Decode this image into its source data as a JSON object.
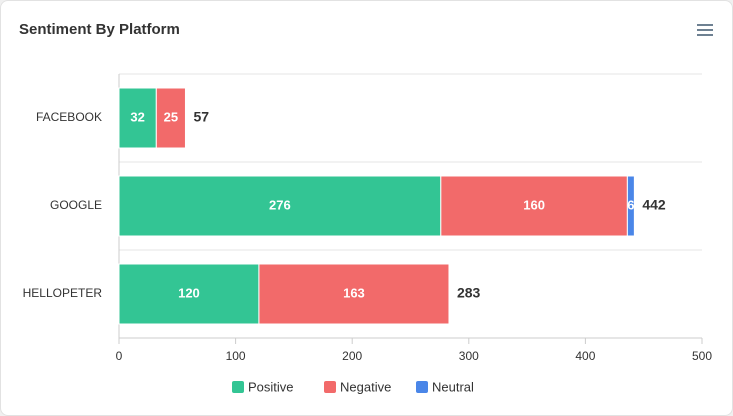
{
  "chart_data": {
    "type": "stacked-hbar",
    "title": "Sentiment By Platform",
    "categories": [
      "FACEBOOK",
      "GOOGLE",
      "HELLOPETER"
    ],
    "series": [
      {
        "name": "Positive",
        "color": "#33c594",
        "values": [
          32,
          276,
          120
        ]
      },
      {
        "name": "Negative",
        "color": "#f26a6a",
        "values": [
          25,
          160,
          163
        ]
      },
      {
        "name": "Neutral",
        "color": "#4a86e8",
        "values": [
          0,
          6,
          0
        ]
      }
    ],
    "totals": [
      57,
      442,
      283
    ],
    "xlim": [
      0,
      500
    ],
    "xticks": [
      0,
      100,
      200,
      300,
      400,
      500
    ],
    "grid": true,
    "legend": "bottom"
  }
}
